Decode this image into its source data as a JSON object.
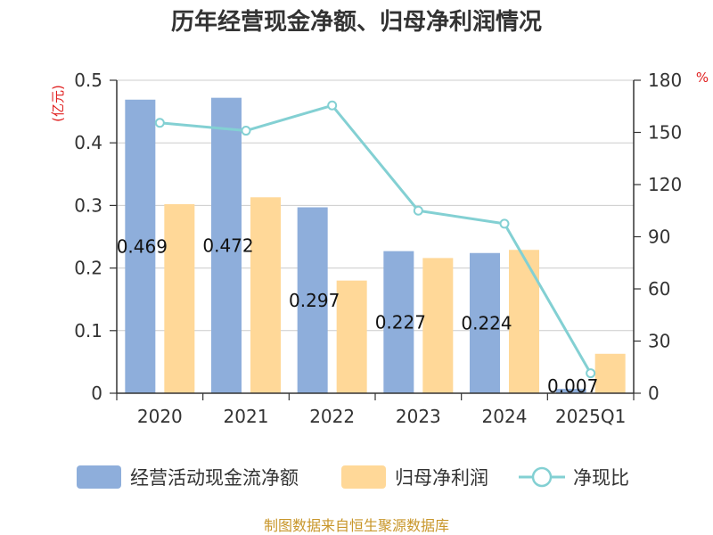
{
  "chart_data": {
    "type": "bar",
    "title": "历年经营现金净额、归母净利润情况",
    "categories": [
      "2020",
      "2021",
      "2022",
      "2023",
      "2024",
      "2025Q1"
    ],
    "left_axis": {
      "unit": "(亿元)",
      "ylim": [
        0,
        0.5
      ],
      "ticks": [
        "0",
        "0.1",
        "0.2",
        "0.3",
        "0.4",
        "0.5"
      ]
    },
    "right_axis": {
      "unit": "%",
      "ylim": [
        0,
        180
      ],
      "ticks": [
        "0",
        "30",
        "60",
        "90",
        "120",
        "150",
        "180"
      ]
    },
    "series": [
      {
        "name": "经营活动现金流净额",
        "kind": "bar",
        "axis": "left",
        "color": "#8eaedb",
        "values": [
          0.469,
          0.472,
          0.297,
          0.227,
          0.224,
          0.007
        ],
        "labels": [
          "0.469",
          "0.472",
          "0.297",
          "0.227",
          "0.224",
          "0.007"
        ]
      },
      {
        "name": "归母净利润",
        "kind": "bar",
        "axis": "left",
        "color": "#ffd898",
        "values": [
          0.302,
          0.313,
          0.18,
          0.216,
          0.229,
          0.063
        ]
      },
      {
        "name": "净现比",
        "kind": "line",
        "axis": "right",
        "color": "#83d0d3",
        "values": [
          155.5,
          151,
          165.5,
          105,
          97.5,
          11.5
        ]
      }
    ],
    "grid": true,
    "legend": "bottom"
  },
  "footer": {
    "source": "制图数据来自恒生聚源数据库"
  }
}
